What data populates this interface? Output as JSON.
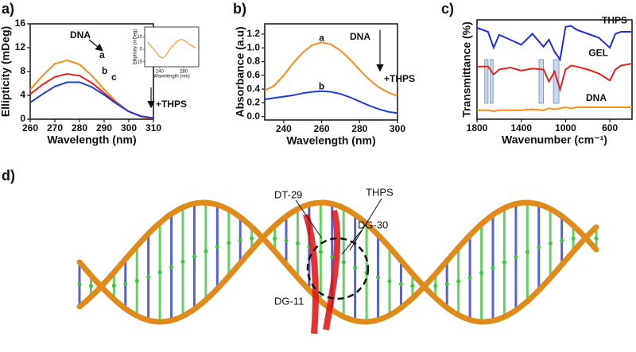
{
  "figure": {
    "panel_labels": [
      "a)",
      "b)",
      "c)",
      "d)"
    ],
    "structure_labels": [
      "DT-29",
      "THPS",
      "DG-30",
      "DG-11"
    ]
  },
  "chart_data": [
    {
      "type": "line",
      "x_label": "Wavelength (nm)",
      "y_label": "Ellipticity (mDeg)",
      "x": [
        260,
        265,
        270,
        275,
        280,
        285,
        290,
        295,
        300,
        305,
        310
      ],
      "series": [
        {
          "name": "DNA",
          "color": "#ff8c1a",
          "values": [
            5.0,
            7.3,
            9.3,
            9.9,
            9.2,
            7.3,
            5.0,
            2.9,
            1.3,
            0.4,
            0.1
          ]
        },
        {
          "name": "b",
          "color": "#e8201c",
          "values": [
            4.2,
            5.8,
            7.1,
            7.6,
            7.3,
            6.1,
            4.4,
            2.7,
            1.3,
            0.5,
            0.1
          ]
        },
        {
          "name": "c",
          "color": "#1b3fd6",
          "values": [
            2.8,
            4.2,
            5.5,
            6.2,
            6.2,
            5.4,
            4.1,
            2.6,
            1.3,
            0.5,
            0.2
          ]
        }
      ],
      "annotations": [
        "DNA",
        "a",
        "b",
        "c",
        "+THPS"
      ],
      "xlim": [
        260,
        310
      ],
      "xticks": [
        260,
        270,
        280,
        290,
        300,
        310
      ],
      "ylim": [
        0,
        16
      ],
      "yticks": [
        0,
        4,
        8,
        12,
        16
      ]
    },
    {
      "type": "line",
      "x_label": "Wavelength (nm)",
      "y_label": "Ellipticity (mDeg)",
      "x": [
        220,
        230,
        240,
        245,
        250,
        260,
        270,
        275,
        280,
        290,
        300
      ],
      "series": [
        {
          "name": "DNA",
          "color": "#ff8c1a",
          "values": [
            6,
            0,
            -6,
            -7,
            -5,
            2,
            7,
            8,
            7.5,
            4,
            1
          ]
        }
      ],
      "xlim": [
        215,
        305
      ],
      "xticks": [
        240,
        280
      ],
      "ylim": [
        -14,
        18
      ],
      "yticks": [
        -10,
        0,
        10
      ]
    },
    {
      "type": "line",
      "x_label": "Wavelength (nm)",
      "y_label": "Absorbance (a.u)",
      "x": [
        230,
        235,
        240,
        245,
        250,
        255,
        260,
        265,
        270,
        275,
        280,
        285,
        290,
        295,
        300
      ],
      "series": [
        {
          "name": "a",
          "color": "#ff8c1a",
          "values": [
            0.38,
            0.45,
            0.6,
            0.78,
            0.93,
            1.04,
            1.08,
            1.05,
            0.96,
            0.83,
            0.68,
            0.54,
            0.43,
            0.35,
            0.3
          ]
        },
        {
          "name": "b",
          "color": "#1b3fd6",
          "values": [
            0.25,
            0.27,
            0.29,
            0.31,
            0.34,
            0.36,
            0.37,
            0.36,
            0.33,
            0.28,
            0.22,
            0.16,
            0.11,
            0.07,
            0.05
          ]
        }
      ],
      "annotations": [
        "DNA",
        "+THPS"
      ],
      "xlim": [
        230,
        300
      ],
      "xticks": [
        240,
        260,
        280,
        300
      ],
      "ylim": [
        -0.05,
        1.35
      ],
      "yticks": [
        {
          "value": 0,
          "label": "0.0"
        },
        0.2,
        0.4,
        0.6,
        0.8,
        {
          "value": 1,
          "label": "1.0"
        },
        1.2
      ]
    },
    {
      "type": "line",
      "x_label": "Wavenumber (cm⁻¹)",
      "y_label": "Transmittance (%)",
      "x": [
        1800,
        1700,
        1650,
        1600,
        1500,
        1400,
        1300,
        1200,
        1150,
        1100,
        1050,
        1000,
        950,
        900,
        800,
        700,
        600,
        550,
        500,
        400
      ],
      "series": [
        {
          "name": "THPS",
          "color": "#1b2fe0",
          "values": [
            9.2,
            8.8,
            7.2,
            8.5,
            8.0,
            7.5,
            8.6,
            7.3,
            8.0,
            6.8,
            6.0,
            9.3,
            9.4,
            9.0,
            8.6,
            8.2,
            7.2,
            8.6,
            8.8,
            8.8
          ]
        },
        {
          "name": "GEL",
          "color": "#e8201c",
          "values": [
            5.3,
            5.3,
            4.5,
            5.0,
            5.2,
            4.9,
            5.1,
            5.0,
            3.8,
            4.8,
            3.0,
            5.0,
            5.4,
            5.3,
            5.0,
            4.6,
            3.9,
            5.0,
            5.4,
            5.6
          ]
        },
        {
          "name": "DNA",
          "color": "#ff8c1a",
          "values": [
            0.9,
            0.9,
            0.8,
            0.9,
            0.9,
            0.9,
            1.0,
            0.9,
            1.1,
            1.0,
            1.1,
            1.2,
            1.1,
            1.2,
            1.2,
            1.2,
            1.2,
            1.2,
            1.2,
            1.2
          ]
        }
      ],
      "highlight_bands": [
        [
          1730,
          1700
        ],
        [
          1680,
          1655
        ],
        [
          1240,
          1200
        ],
        [
          1110,
          1060
        ]
      ],
      "xlim": [
        1800,
        400
      ],
      "xticks": [
        1800,
        1400,
        1000,
        600
      ],
      "ylim": [
        0,
        10
      ]
    }
  ]
}
